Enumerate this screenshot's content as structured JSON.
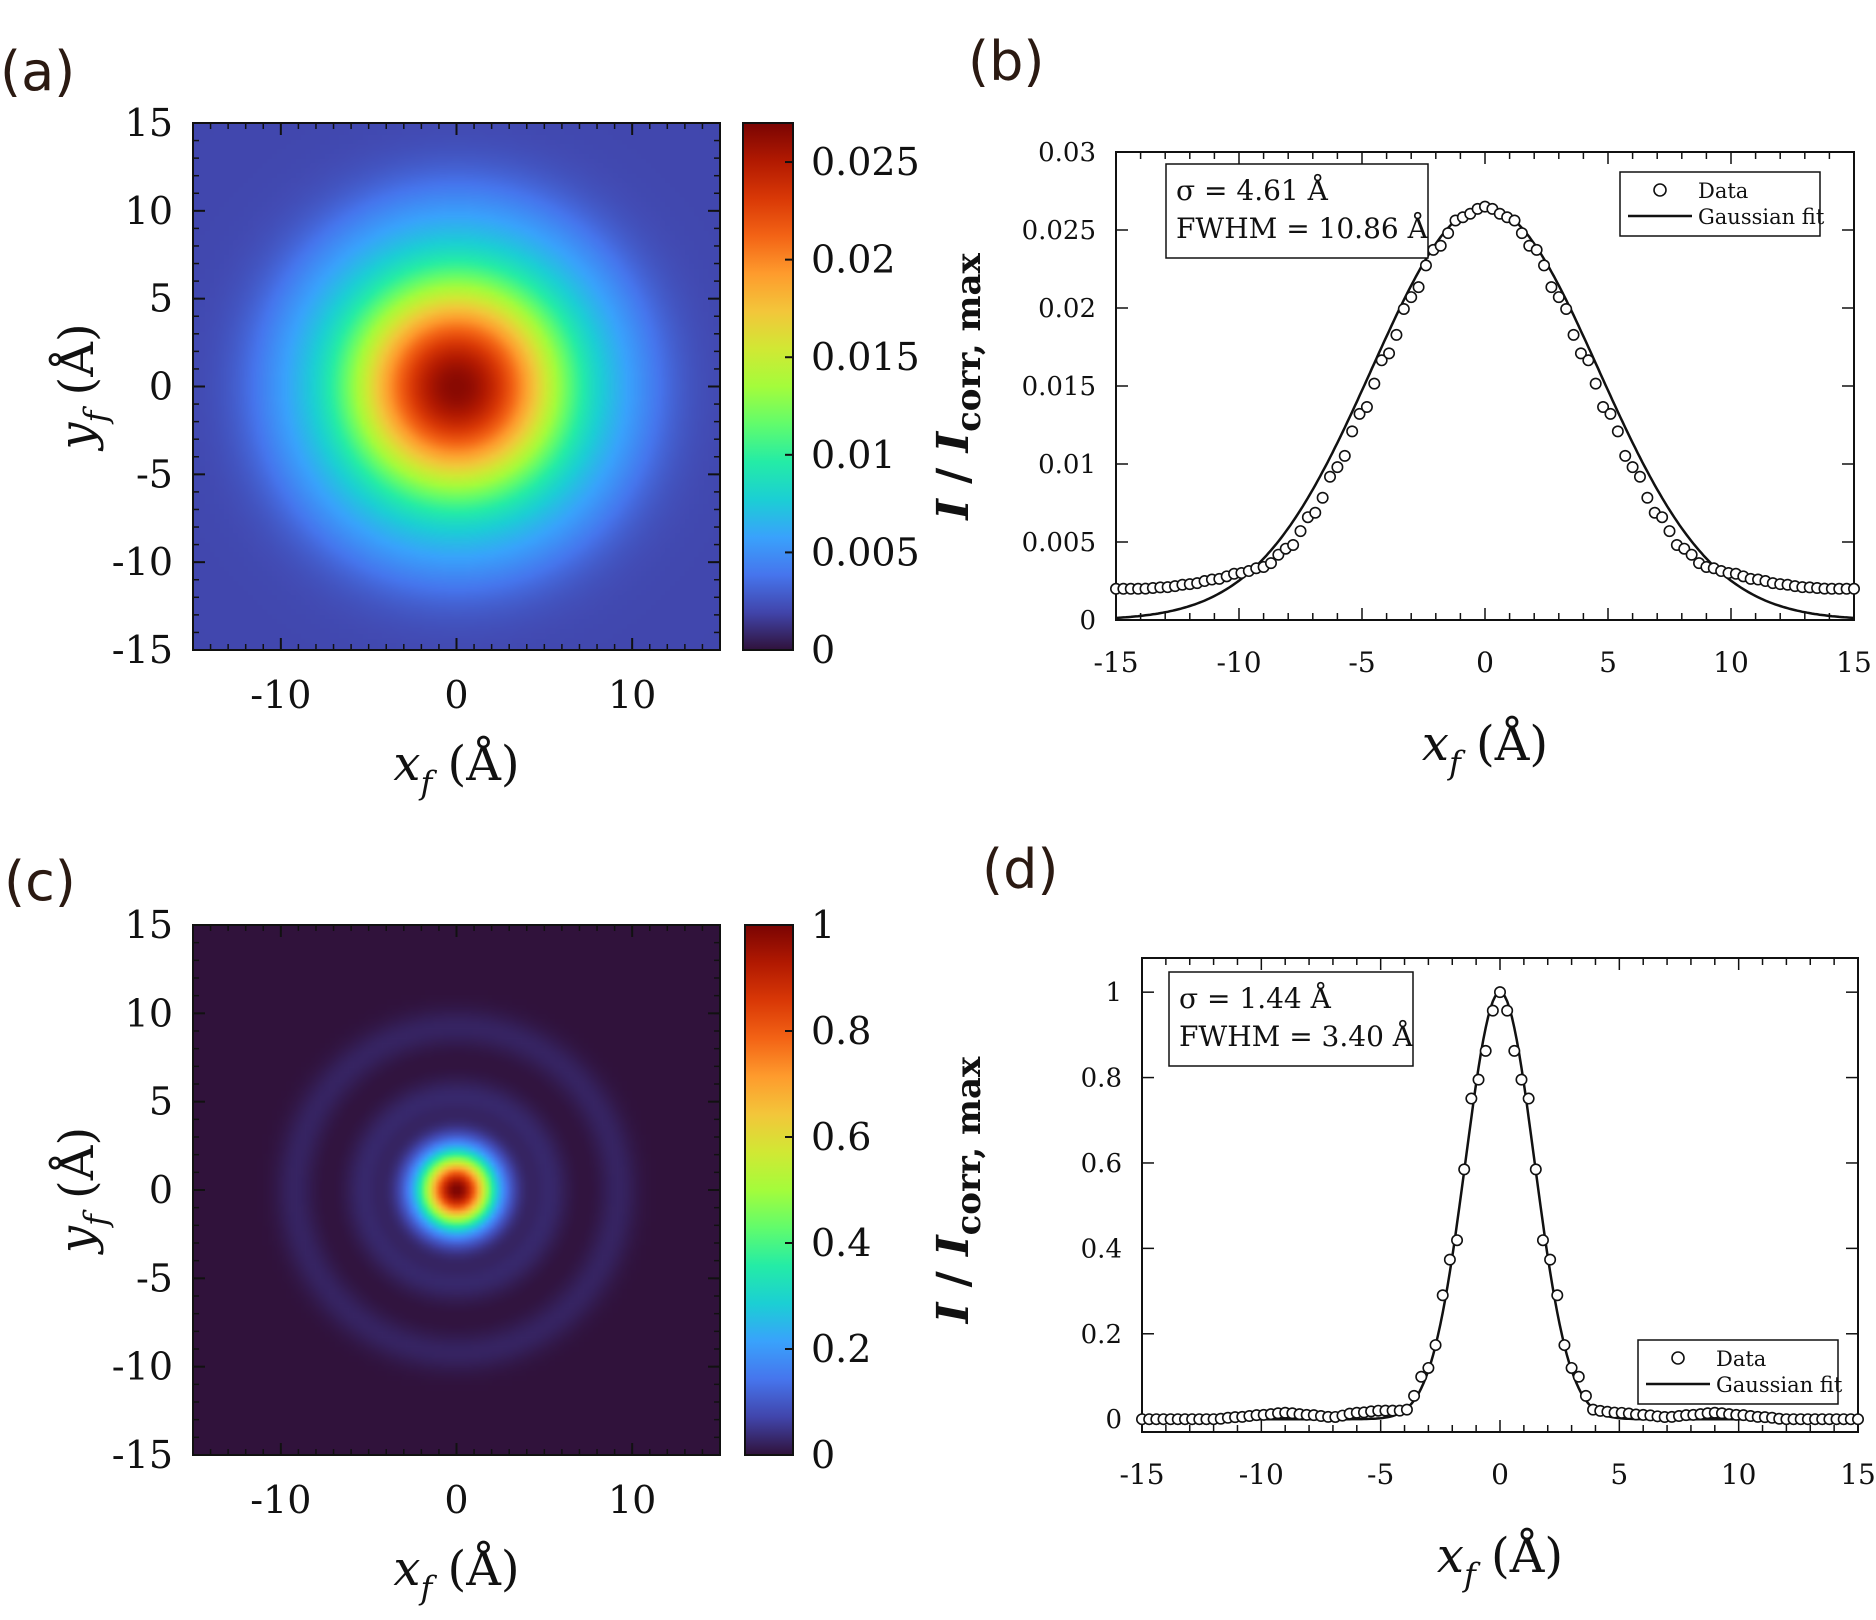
{
  "figure": {
    "panels": [
      {
        "id": "a",
        "label": "(a)"
      },
      {
        "id": "b",
        "label": "(b)"
      },
      {
        "id": "c",
        "label": "(c)"
      },
      {
        "id": "d",
        "label": "(d)"
      }
    ]
  },
  "chart_data": [
    {
      "panel": "(a)",
      "type": "heatmap",
      "xlabel": "x_f (Å)",
      "ylabel": "y_f (Å)",
      "xlim": [
        -15,
        15
      ],
      "ylim": [
        -15,
        15
      ],
      "xticks": [
        "-10",
        "0",
        "10"
      ],
      "yticks": [
        "15",
        "10",
        "5",
        "0",
        "-5",
        "-10",
        "-15"
      ],
      "colorbar": {
        "label": "I / I_corr, max",
        "range": [
          0,
          0.027
        ],
        "ticks": [
          "0.025",
          "0.02",
          "0.015",
          "0.01",
          "0.005",
          "0"
        ]
      },
      "peak_value": 0.0265,
      "background_value": 0.002,
      "gaussian_sigma": 4.61,
      "colormap": [
        "#30123b",
        "#4145ab",
        "#4675ed",
        "#39a2fc",
        "#1bcfd4",
        "#24eca6",
        "#61fc6c",
        "#a4fc3b",
        "#d1e834",
        "#f3c63a",
        "#fe9b2d",
        "#f36315",
        "#d93806",
        "#b11901",
        "#7a0403"
      ]
    },
    {
      "panel": "(b)",
      "type": "scatter",
      "xlabel": "x_f (Å)",
      "ylabel": "",
      "xlim": [
        -15,
        15
      ],
      "ylim": [
        0,
        0.03
      ],
      "xticks": [
        "-15",
        "-10",
        "-5",
        "0",
        "5",
        "10",
        "15"
      ],
      "yticks": [
        "0.03",
        "0.025",
        "0.02",
        "0.015",
        "0.01",
        "0.005",
        "0"
      ],
      "annotation": [
        "σ = 4.61 Å",
        "FWHM = 10.86 Å"
      ],
      "legend": {
        "position": "top-right",
        "entries": [
          "Data",
          "Gaussian fit"
        ]
      },
      "series": [
        {
          "name": "Data",
          "style": "open-circles",
          "x": [
            -15,
            -14,
            -13,
            -12,
            -11,
            -10,
            -9,
            -8,
            -7,
            -6,
            -5,
            -4,
            -3,
            -2,
            -1,
            0,
            1,
            2,
            3,
            4,
            5,
            6,
            7,
            8,
            9,
            10,
            11,
            12,
            13,
            14,
            15
          ],
          "y": [
            0.002,
            0.002,
            0.0021,
            0.0023,
            0.0026,
            0.003,
            0.0034,
            0.0046,
            0.0068,
            0.0098,
            0.0133,
            0.017,
            0.0207,
            0.0238,
            0.0258,
            0.0265,
            0.0258,
            0.0238,
            0.0207,
            0.017,
            0.0133,
            0.0098,
            0.0068,
            0.0046,
            0.0034,
            0.003,
            0.0026,
            0.0023,
            0.0021,
            0.002,
            0.002
          ]
        },
        {
          "name": "Gaussian fit",
          "style": "line",
          "amplitude": 0.0265,
          "mu": 0,
          "sigma": 4.61
        }
      ]
    },
    {
      "panel": "(c)",
      "type": "heatmap",
      "xlabel": "x_f (Å)",
      "ylabel": "y_f (Å)",
      "xlim": [
        -15,
        15
      ],
      "ylim": [
        -15,
        15
      ],
      "xticks": [
        "-10",
        "0",
        "10"
      ],
      "yticks": [
        "15",
        "10",
        "5",
        "0",
        "-5",
        "-10",
        "-15"
      ],
      "colorbar": {
        "label": "I / I_corr, max",
        "range": [
          0,
          1
        ],
        "ticks": [
          "1",
          "0.8",
          "0.6",
          "0.4",
          "0.2",
          "0"
        ]
      },
      "peak_value": 1,
      "gaussian_sigma": 1.44,
      "rings": [
        {
          "radius": 5.3,
          "value": 0.03
        },
        {
          "radius": 9.2,
          "value": 0.025
        }
      ]
    },
    {
      "panel": "(d)",
      "type": "scatter",
      "xlabel": "x_f (Å)",
      "ylabel": "",
      "xlim": [
        -15,
        15
      ],
      "ylim": [
        -0.03,
        1.08
      ],
      "xticks": [
        "-15",
        "-10",
        "-5",
        "0",
        "5",
        "10",
        "15"
      ],
      "yticks": [
        "1",
        "0.8",
        "0.6",
        "0.4",
        "0.2",
        "0"
      ],
      "annotation": [
        "σ = 1.44 Å",
        "FWHM = 3.40 Å"
      ],
      "legend": {
        "position": "bottom-right",
        "entries": [
          "Data",
          "Gaussian fit"
        ]
      },
      "series": [
        {
          "name": "Data",
          "style": "open-circles",
          "x": [
            -15,
            -14,
            -13,
            -12,
            -11,
            -10,
            -9,
            -8,
            -7,
            -6,
            -5,
            -4,
            -3,
            -2,
            -1,
            0,
            1,
            2,
            3,
            4,
            5,
            6,
            7,
            8,
            9,
            10,
            11,
            12,
            13,
            14,
            15
          ],
          "y": [
            0,
            0,
            0,
            0,
            0.005,
            0.01,
            0.015,
            0.01,
            0.005,
            0.015,
            0.02,
            0.02,
            0.12,
            0.38,
            0.79,
            1.0,
            0.79,
            0.38,
            0.12,
            0.02,
            0.015,
            0.01,
            0.005,
            0.01,
            0.015,
            0.01,
            0.005,
            0,
            0,
            0,
            0
          ]
        },
        {
          "name": "Gaussian fit",
          "style": "line",
          "amplitude": 1.0,
          "mu": 0,
          "sigma": 1.44
        }
      ]
    }
  ]
}
